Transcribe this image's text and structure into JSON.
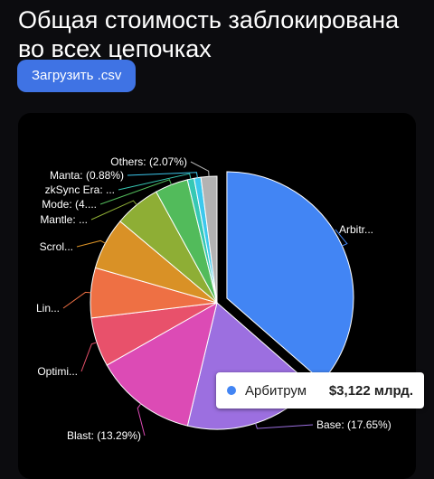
{
  "page": {
    "title": "Общая стоимость заблокирована во всех цепочках",
    "button_label": "Загрузить .csv"
  },
  "tooltip": {
    "name": "Арбитрум",
    "value": "$3,122 млрд.",
    "color": "#4285f4"
  },
  "chart_data": {
    "type": "pie",
    "slices": [
      {
        "label": "Arbitr...",
        "value": 37.1,
        "color": "#4285f4"
      },
      {
        "label": "Base: (17.65%)",
        "value": 17.65,
        "color": "#9c6fe0"
      },
      {
        "label": "Blast: (13.29%)",
        "value": 13.29,
        "color": "#dc4bb5"
      },
      {
        "label": "Optimi...",
        "value": 6.4,
        "color": "#e8516b"
      },
      {
        "label": "Lin...",
        "value": 6.5,
        "color": "#ee7044"
      },
      {
        "label": "Scrol...",
        "value": 6.8,
        "color": "#d99126"
      },
      {
        "label": "Mantle: ...",
        "value": 6.0,
        "color": "#8eae35"
      },
      {
        "label": "Mode: (4....",
        "value": 4.3,
        "color": "#52bb5b"
      },
      {
        "label": "zkSync Era: ...",
        "value": 0.88,
        "color": "#36c8b4"
      },
      {
        "label": "Manta: (0.88%)",
        "value": 0.88,
        "color": "#3cc8ed"
      },
      {
        "label": "Others: (2.07%)",
        "value": 2.07,
        "color": "#b3b3b3"
      }
    ]
  }
}
